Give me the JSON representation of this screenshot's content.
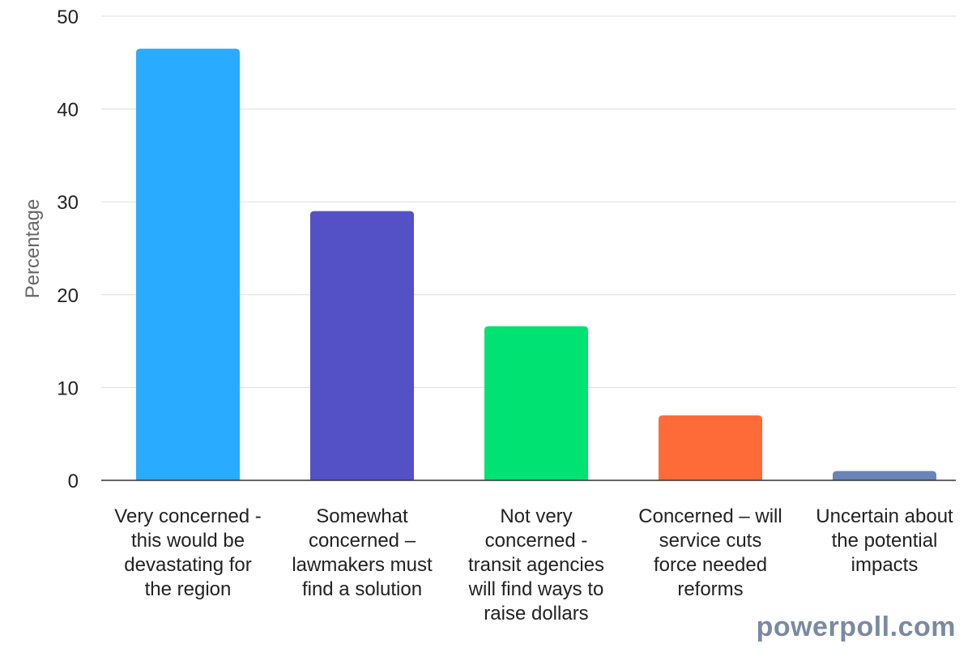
{
  "chart_data": {
    "type": "bar",
    "ylabel": "Percentage",
    "ylim": [
      0,
      50
    ],
    "yticks": [
      0,
      10,
      20,
      30,
      40,
      50
    ],
    "grid": true,
    "categories": [
      "Very concerned - this would be devastating for the region",
      "Somewhat concerned – lawmakers must find a solution",
      "Not very concerned - transit agencies will find ways to raise dollars",
      "Concerned – will service cuts force needed reforms",
      "Uncertain about the potential impacts"
    ],
    "category_lines": [
      [
        "Very concerned -",
        "this would be",
        "devastating for",
        "the region"
      ],
      [
        "Somewhat",
        "concerned –",
        "lawmakers must",
        "find a solution"
      ],
      [
        "Not very",
        "concerned -",
        "transit agencies",
        "will find ways to",
        "raise dollars"
      ],
      [
        "Concerned – will",
        "service cuts",
        "force needed",
        "reforms"
      ],
      [
        "Uncertain about",
        "the potential",
        "impacts"
      ]
    ],
    "values": [
      46.5,
      29,
      16.6,
      7,
      1
    ],
    "colors": [
      "#29abff",
      "#5451c7",
      "#00e271",
      "#ff6b38",
      "#6a84b8"
    ]
  },
  "watermark": "powerpoll.com"
}
